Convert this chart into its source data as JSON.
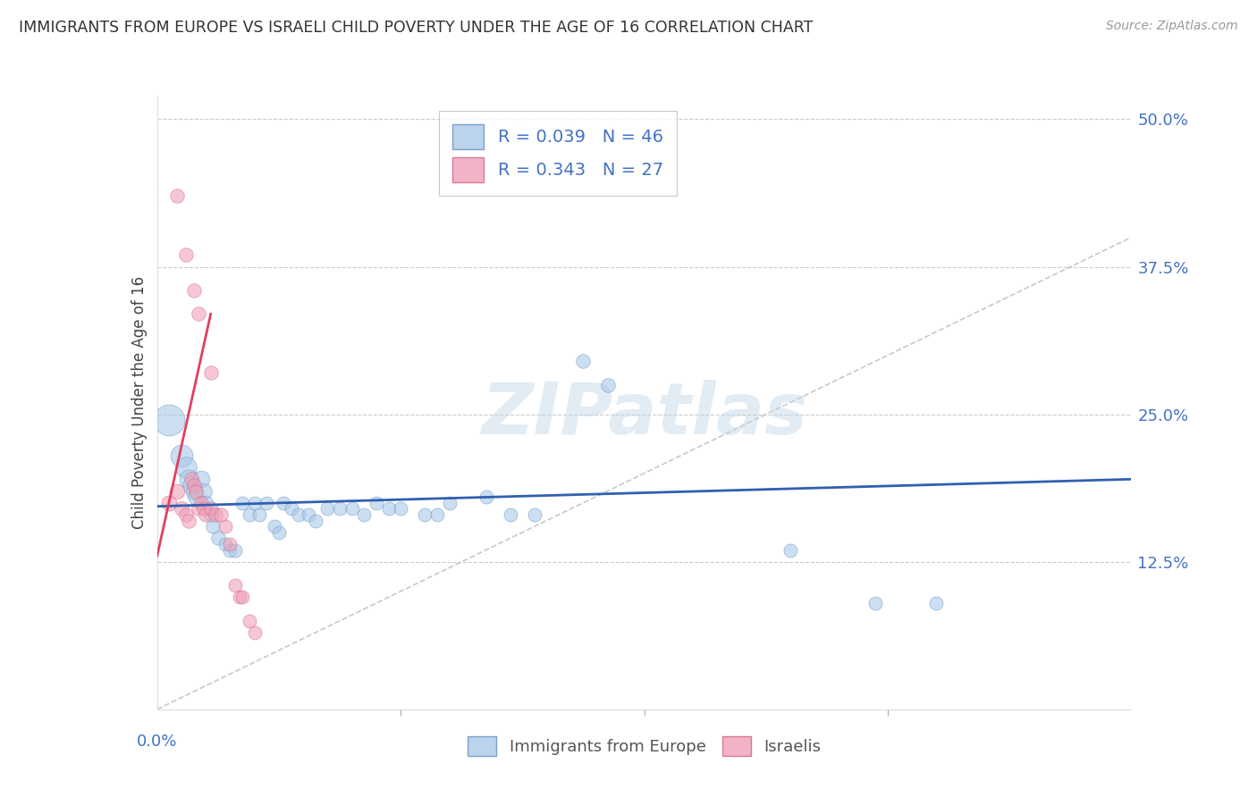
{
  "title": "IMMIGRANTS FROM EUROPE VS ISRAELI CHILD POVERTY UNDER THE AGE OF 16 CORRELATION CHART",
  "source": "Source: ZipAtlas.com",
  "ylabel": "Child Poverty Under the Age of 16",
  "yticks": [
    0.0,
    0.125,
    0.25,
    0.375,
    0.5
  ],
  "ytick_labels": [
    "",
    "12.5%",
    "25.0%",
    "37.5%",
    "50.0%"
  ],
  "xlim": [
    0.0,
    0.4
  ],
  "ylim": [
    0.0,
    0.52
  ],
  "legend_labels": [
    "Immigrants from Europe",
    "Israelis"
  ],
  "blue_color": "#aac8e8",
  "pink_color": "#f0a0b8",
  "blue_edge_color": "#6090c0",
  "pink_edge_color": "#d06080",
  "blue_line_color": "#3060b0",
  "pink_line_color": "#e04060",
  "watermark_text": "ZIPatlas",
  "blue_points": [
    [
      0.005,
      0.245,
      350
    ],
    [
      0.01,
      0.215,
      180
    ],
    [
      0.012,
      0.205,
      160
    ],
    [
      0.013,
      0.195,
      130
    ],
    [
      0.014,
      0.19,
      110
    ],
    [
      0.015,
      0.185,
      100
    ],
    [
      0.016,
      0.18,
      90
    ],
    [
      0.018,
      0.195,
      100
    ],
    [
      0.019,
      0.185,
      90
    ],
    [
      0.02,
      0.175,
      80
    ],
    [
      0.022,
      0.165,
      75
    ],
    [
      0.023,
      0.155,
      70
    ],
    [
      0.025,
      0.145,
      70
    ],
    [
      0.028,
      0.14,
      65
    ],
    [
      0.03,
      0.135,
      65
    ],
    [
      0.032,
      0.135,
      65
    ],
    [
      0.035,
      0.175,
      65
    ],
    [
      0.038,
      0.165,
      65
    ],
    [
      0.04,
      0.175,
      65
    ],
    [
      0.042,
      0.165,
      65
    ],
    [
      0.045,
      0.175,
      65
    ],
    [
      0.048,
      0.155,
      65
    ],
    [
      0.05,
      0.15,
      65
    ],
    [
      0.052,
      0.175,
      65
    ],
    [
      0.055,
      0.17,
      65
    ],
    [
      0.058,
      0.165,
      65
    ],
    [
      0.062,
      0.165,
      65
    ],
    [
      0.065,
      0.16,
      65
    ],
    [
      0.07,
      0.17,
      65
    ],
    [
      0.075,
      0.17,
      65
    ],
    [
      0.08,
      0.17,
      65
    ],
    [
      0.085,
      0.165,
      65
    ],
    [
      0.09,
      0.175,
      65
    ],
    [
      0.095,
      0.17,
      65
    ],
    [
      0.1,
      0.17,
      65
    ],
    [
      0.11,
      0.165,
      65
    ],
    [
      0.115,
      0.165,
      65
    ],
    [
      0.12,
      0.175,
      65
    ],
    [
      0.135,
      0.18,
      65
    ],
    [
      0.145,
      0.165,
      65
    ],
    [
      0.155,
      0.165,
      65
    ],
    [
      0.175,
      0.295,
      70
    ],
    [
      0.185,
      0.275,
      70
    ],
    [
      0.26,
      0.135,
      65
    ],
    [
      0.295,
      0.09,
      65
    ],
    [
      0.32,
      0.09,
      65
    ]
  ],
  "pink_points": [
    [
      0.005,
      0.175,
      85
    ],
    [
      0.008,
      0.185,
      80
    ],
    [
      0.01,
      0.17,
      75
    ],
    [
      0.012,
      0.165,
      70
    ],
    [
      0.013,
      0.16,
      70
    ],
    [
      0.014,
      0.195,
      70
    ],
    [
      0.015,
      0.19,
      70
    ],
    [
      0.016,
      0.185,
      70
    ],
    [
      0.017,
      0.17,
      70
    ],
    [
      0.018,
      0.175,
      70
    ],
    [
      0.019,
      0.17,
      70
    ],
    [
      0.02,
      0.165,
      70
    ],
    [
      0.022,
      0.17,
      70
    ],
    [
      0.024,
      0.165,
      70
    ],
    [
      0.026,
      0.165,
      70
    ],
    [
      0.028,
      0.155,
      65
    ],
    [
      0.03,
      0.14,
      65
    ],
    [
      0.032,
      0.105,
      65
    ],
    [
      0.034,
      0.095,
      65
    ],
    [
      0.035,
      0.095,
      65
    ],
    [
      0.038,
      0.075,
      65
    ],
    [
      0.04,
      0.065,
      65
    ],
    [
      0.008,
      0.435,
      70
    ],
    [
      0.012,
      0.385,
      70
    ],
    [
      0.015,
      0.355,
      70
    ],
    [
      0.017,
      0.335,
      70
    ],
    [
      0.022,
      0.285,
      70
    ]
  ],
  "blue_trend": [
    0.0,
    0.4,
    0.172,
    0.195
  ],
  "pink_trend_x": [
    0.005,
    0.022
  ],
  "pink_trend_y": [
    0.14,
    0.335
  ]
}
